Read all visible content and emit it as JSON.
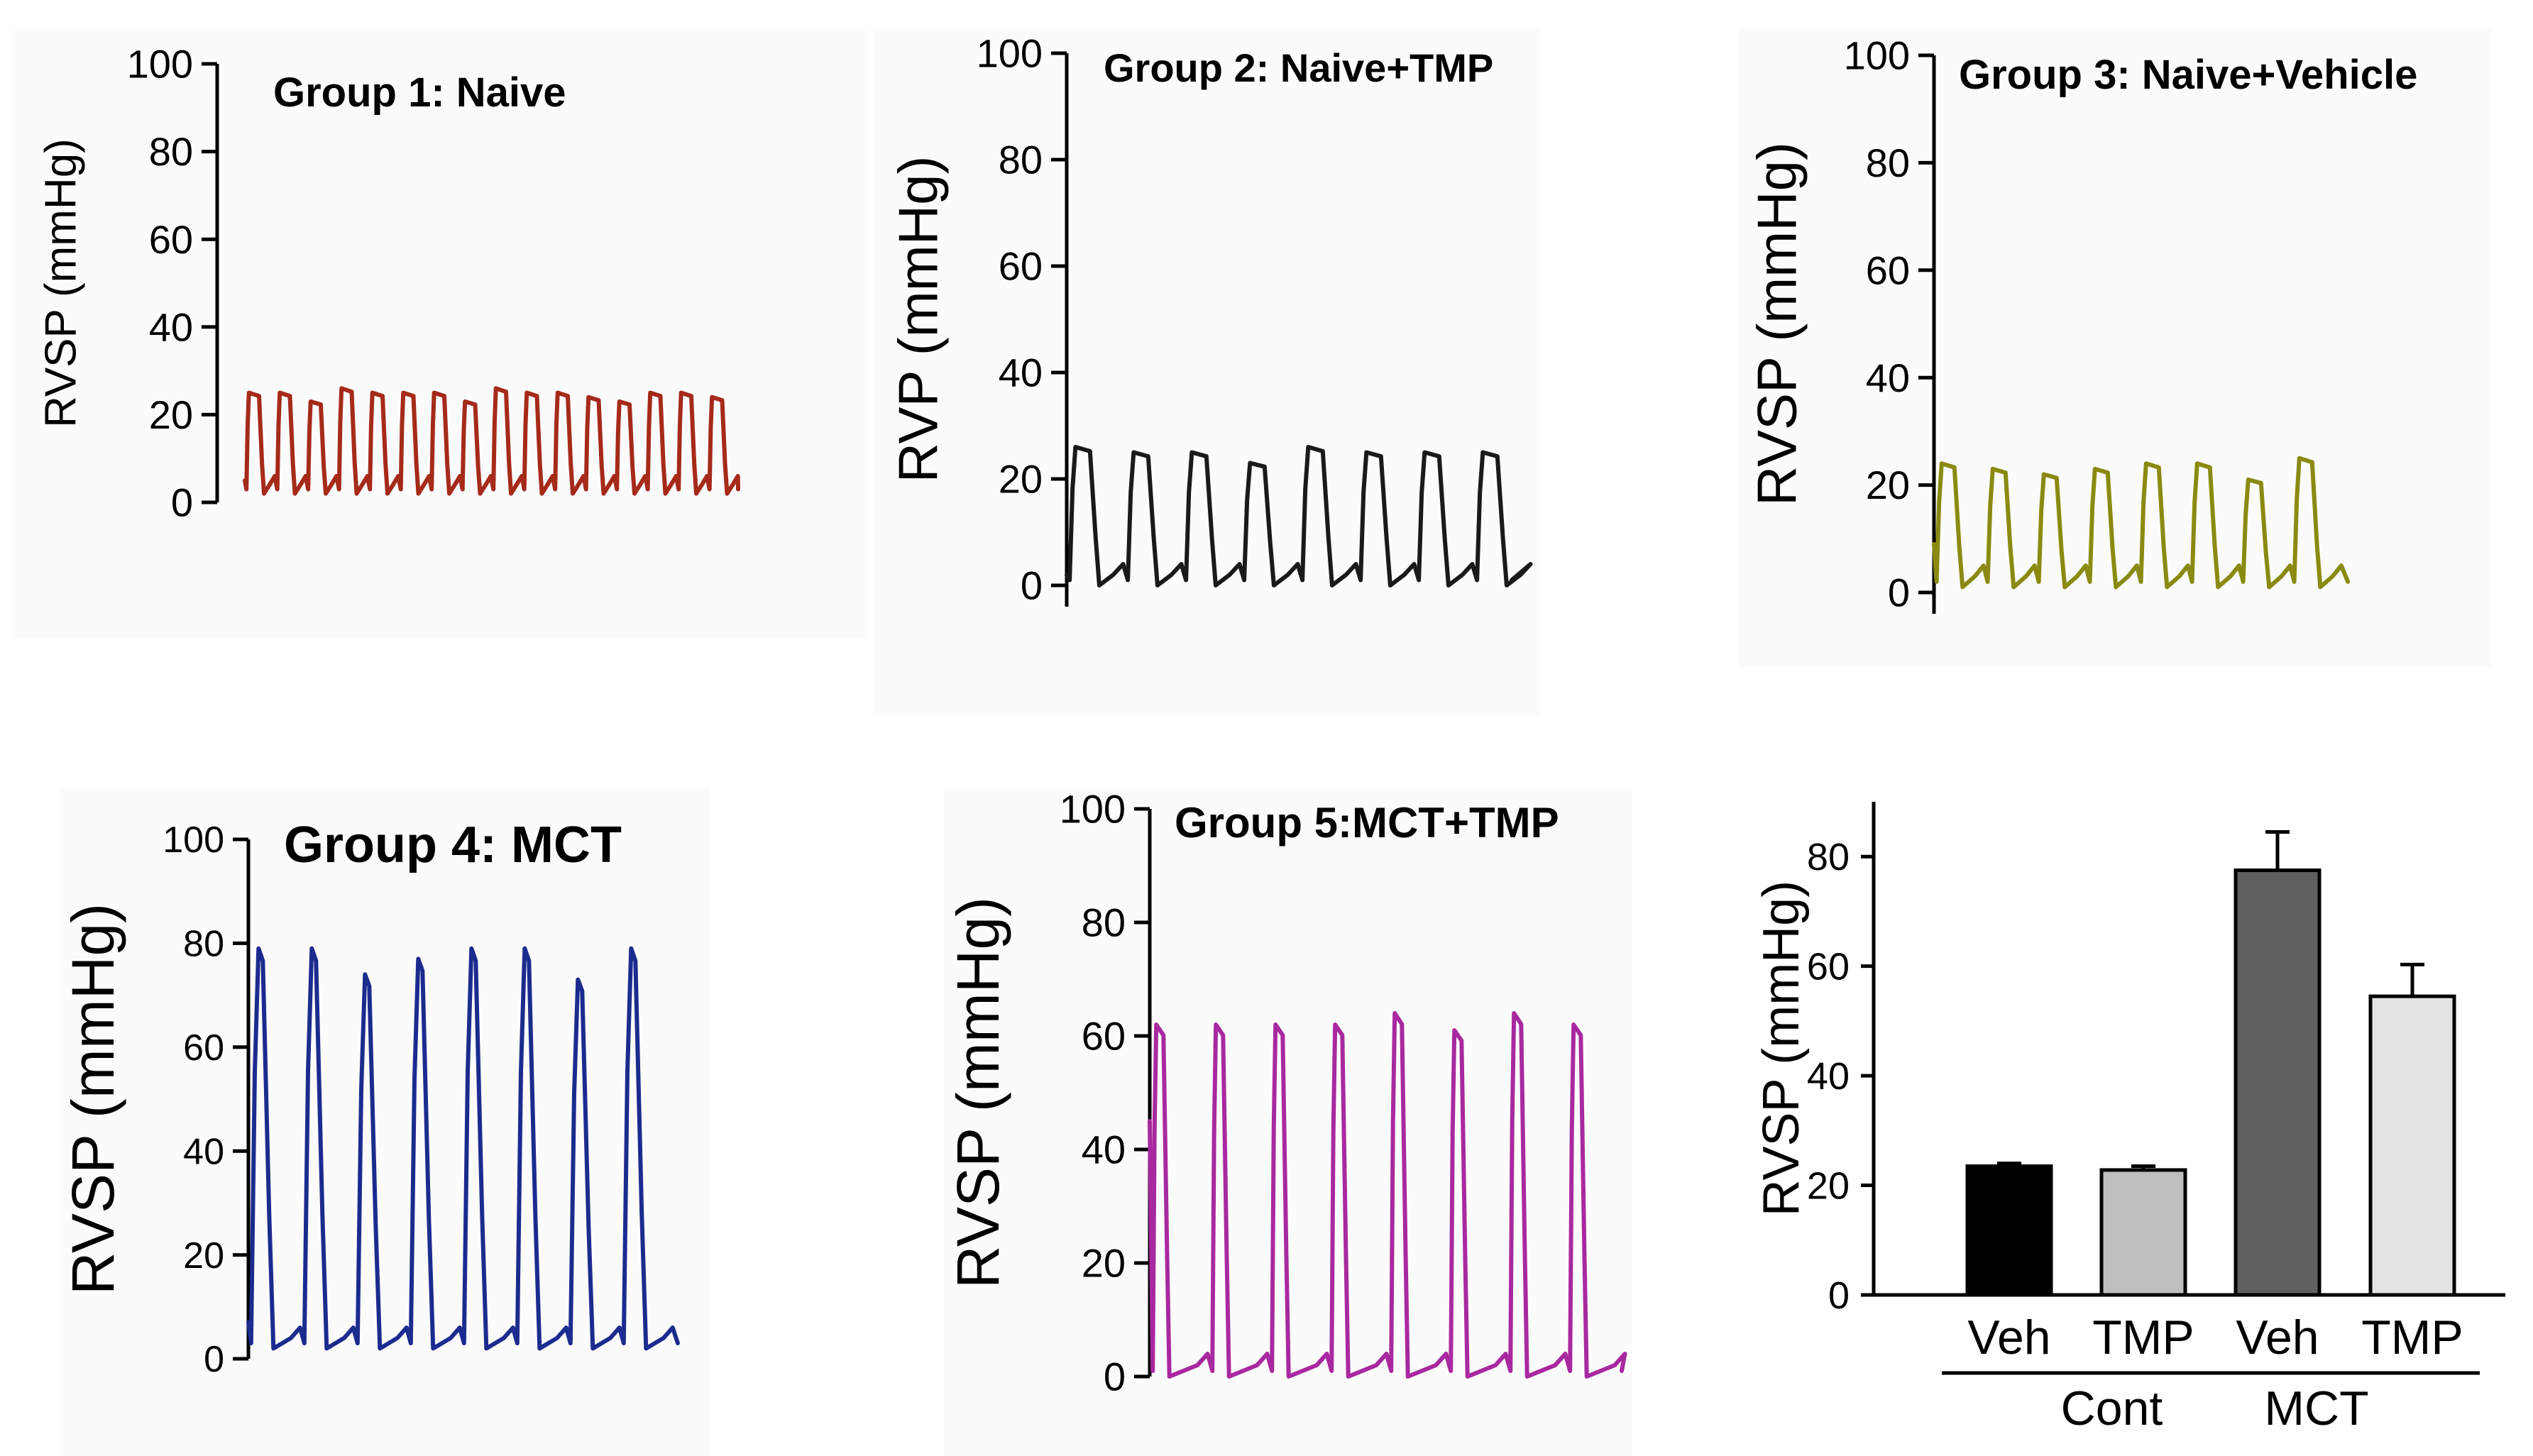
{
  "chart_data": [
    {
      "type": "line",
      "title": "Group 1: Naive",
      "ylabel": "RVSP (mmHg)",
      "ylim": [
        0,
        100
      ],
      "yticks": [
        0,
        20,
        40,
        60,
        80,
        100
      ],
      "color": "#a52a1a",
      "cycles": 16,
      "baseline": 2,
      "peaks": [
        25,
        25,
        23,
        26,
        25,
        25,
        25,
        23,
        26,
        25,
        25,
        24,
        23,
        25,
        25,
        24
      ],
      "start_value": 5
    },
    {
      "type": "line",
      "title": "Group 2: Naive+TMP",
      "ylabel": "RVP (mmHg)",
      "ylim": [
        0,
        100
      ],
      "yticks": [
        0,
        20,
        40,
        60,
        80,
        100
      ],
      "color": "#1a1a1a",
      "cycles": 8,
      "baseline": 0,
      "peaks": [
        26,
        25,
        25,
        23,
        26,
        25,
        25,
        25
      ],
      "start_value": 2
    },
    {
      "type": "line",
      "title": "Group 3: Naive+Vehicle",
      "ylabel": "RVSP (mmHg)",
      "ylim": [
        0,
        100
      ],
      "yticks": [
        0,
        20,
        40,
        60,
        80,
        100
      ],
      "color": "#8a8a12",
      "cycles": 8,
      "baseline": 1,
      "peaks": [
        24,
        23,
        22,
        23,
        24,
        24,
        21,
        25
      ],
      "start_value": 9
    },
    {
      "type": "line",
      "title": "Group 4: MCT",
      "ylabel": "RVSP (mmHg)",
      "ylim": [
        0,
        100
      ],
      "yticks": [
        0,
        20,
        40,
        60,
        80,
        100
      ],
      "color": "#1c2b8e",
      "cycles": 8,
      "baseline": 2,
      "peaks": [
        79,
        79,
        74,
        77,
        79,
        79,
        73,
        79
      ],
      "start_value": 7
    },
    {
      "type": "line",
      "title": "Group 5:MCT+TMP",
      "ylabel": "RVSP (mmHg)",
      "ylim": [
        0,
        100
      ],
      "yticks": [
        0,
        20,
        40,
        60,
        80,
        100
      ],
      "color": "#a8299f",
      "cycles": 8,
      "baseline": 0,
      "peaks": [
        62,
        62,
        62,
        62,
        64,
        61,
        64,
        62
      ],
      "start_value": 45
    },
    {
      "type": "bar",
      "title": "",
      "ylabel": "RVSP (mmHg)",
      "ylim": [
        0,
        90
      ],
      "yticks": [
        0,
        20,
        40,
        60,
        80
      ],
      "categories": [
        "Veh",
        "TMP",
        "Veh",
        "TMP"
      ],
      "groups": [
        {
          "label": "Cont",
          "members": [
            0,
            1
          ]
        },
        {
          "label": "MCT",
          "members": [
            2,
            3
          ]
        }
      ],
      "values": [
        23.5,
        22.8,
        77.5,
        54.5
      ],
      "errors": [
        0.5,
        0.7,
        7.0,
        5.8
      ],
      "colors": [
        "#000000",
        "#bfbfbf",
        "#606060",
        "#e3e3e3"
      ]
    }
  ]
}
